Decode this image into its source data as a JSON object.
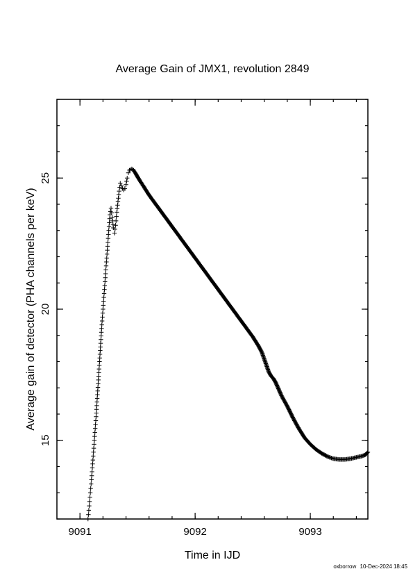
{
  "chart_data": {
    "type": "scatter",
    "title": "Average Gain of JMX1, revolution 2849",
    "xlabel": "Time in IJD",
    "ylabel": "Average gain of detector (PHA channels per keV)",
    "xlim": [
      9090.8,
      9093.5
    ],
    "ylim": [
      12.0,
      28.0
    ],
    "xticks": [
      9091,
      9092,
      9093
    ],
    "xtick_labels": [
      "9091",
      "9092",
      "9093"
    ],
    "yticks": [
      15,
      20,
      25
    ],
    "ytick_labels": [
      "15",
      "20",
      "25"
    ],
    "grid": false,
    "marker": "+",
    "series": [
      {
        "points": [
          [
            9091.07,
            12.0
          ],
          [
            9091.08,
            12.5
          ],
          [
            9091.09,
            13.0
          ],
          [
            9091.1,
            13.5
          ],
          [
            9091.11,
            14.1
          ],
          [
            9091.12,
            14.7
          ],
          [
            9091.13,
            15.3
          ],
          [
            9091.14,
            15.9
          ],
          [
            9091.15,
            16.6
          ],
          [
            9091.16,
            17.3
          ],
          [
            9091.17,
            18.0
          ],
          [
            9091.18,
            18.7
          ],
          [
            9091.19,
            19.4
          ],
          [
            9091.2,
            20.0
          ],
          [
            9091.21,
            20.6
          ],
          [
            9091.22,
            21.2
          ],
          [
            9091.23,
            21.8
          ],
          [
            9091.24,
            22.4
          ],
          [
            9091.25,
            23.0
          ],
          [
            9091.26,
            23.6
          ],
          [
            9091.27,
            23.85
          ],
          [
            9091.28,
            23.5
          ],
          [
            9091.29,
            23.1
          ],
          [
            9091.3,
            22.9
          ],
          [
            9091.31,
            23.2
          ],
          [
            9091.32,
            23.7
          ],
          [
            9091.33,
            24.1
          ],
          [
            9091.34,
            24.5
          ],
          [
            9091.35,
            24.8
          ],
          [
            9091.36,
            24.7
          ],
          [
            9091.37,
            24.6
          ],
          [
            9091.38,
            24.55
          ],
          [
            9091.39,
            24.6
          ],
          [
            9091.4,
            24.75
          ],
          [
            9091.41,
            25.0
          ],
          [
            9091.42,
            25.2
          ],
          [
            9091.43,
            25.3
          ],
          [
            9091.44,
            25.32
          ],
          [
            9091.45,
            25.35
          ],
          [
            9091.46,
            25.33
          ],
          [
            9091.48,
            25.2
          ],
          [
            9091.5,
            25.05
          ],
          [
            9091.52,
            24.9
          ],
          [
            9091.55,
            24.7
          ],
          [
            9091.6,
            24.35
          ],
          [
            9091.65,
            24.05
          ],
          [
            9091.7,
            23.75
          ],
          [
            9091.75,
            23.45
          ],
          [
            9091.8,
            23.15
          ],
          [
            9091.85,
            22.85
          ],
          [
            9091.9,
            22.55
          ],
          [
            9091.95,
            22.25
          ],
          [
            9092.0,
            21.95
          ],
          [
            9092.05,
            21.65
          ],
          [
            9092.1,
            21.35
          ],
          [
            9092.15,
            21.05
          ],
          [
            9092.2,
            20.75
          ],
          [
            9092.25,
            20.45
          ],
          [
            9092.3,
            20.15
          ],
          [
            9092.35,
            19.85
          ],
          [
            9092.4,
            19.55
          ],
          [
            9092.45,
            19.25
          ],
          [
            9092.5,
            18.95
          ],
          [
            9092.55,
            18.6
          ],
          [
            9092.58,
            18.35
          ],
          [
            9092.6,
            18.1
          ],
          [
            9092.62,
            17.85
          ],
          [
            9092.64,
            17.6
          ],
          [
            9092.66,
            17.45
          ],
          [
            9092.68,
            17.35
          ],
          [
            9092.7,
            17.2
          ],
          [
            9092.72,
            17.0
          ],
          [
            9092.75,
            16.7
          ],
          [
            9092.8,
            16.3
          ],
          [
            9092.85,
            15.85
          ],
          [
            9092.9,
            15.45
          ],
          [
            9092.95,
            15.1
          ],
          [
            9093.0,
            14.85
          ],
          [
            9093.05,
            14.65
          ],
          [
            9093.1,
            14.5
          ],
          [
            9093.15,
            14.38
          ],
          [
            9093.2,
            14.3
          ],
          [
            9093.25,
            14.27
          ],
          [
            9093.3,
            14.27
          ],
          [
            9093.35,
            14.3
          ],
          [
            9093.4,
            14.35
          ],
          [
            9093.45,
            14.4
          ],
          [
            9093.48,
            14.45
          ],
          [
            9093.5,
            14.55
          ]
        ]
      }
    ]
  },
  "footer": {
    "user": "oxborrow",
    "timestamp": "10-Dec-2024 18:45"
  }
}
